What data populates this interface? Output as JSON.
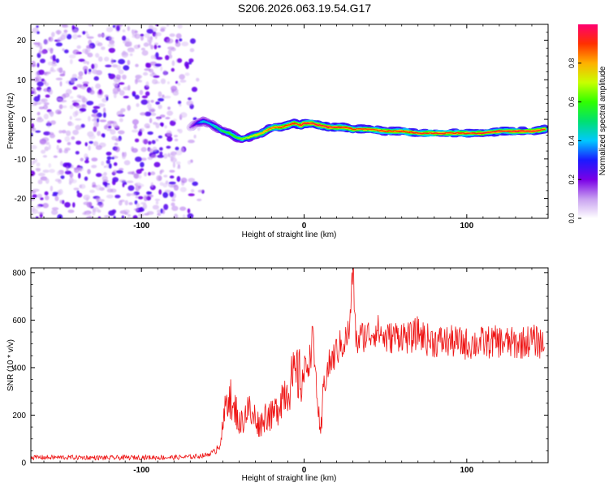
{
  "figure_title": "S206.2026.063.19.54.G17",
  "chart_data": [
    {
      "type": "heatmap",
      "title": "",
      "xlabel": "Height of straight line (km)",
      "ylabel": "Frequency (Hz)",
      "xlim": [
        -168,
        150
      ],
      "ylim": [
        -25,
        24
      ],
      "xticks": [
        -100,
        0,
        100
      ],
      "yticks": [
        -20,
        -10,
        0,
        10,
        20
      ],
      "grid": false,
      "noise_region_x": [
        -168,
        -68
      ],
      "ridge": {
        "x": [
          -70,
          -66,
          -62,
          -58,
          -54,
          -50,
          -46,
          -42,
          -38,
          -34,
          -30,
          -26,
          -22,
          -18,
          -14,
          -10,
          -6,
          -2,
          0,
          5,
          10,
          15,
          20,
          25,
          30,
          40,
          50,
          60,
          70,
          80,
          90,
          100,
          110,
          120,
          130,
          140,
          148
        ],
        "freq": [
          -2.0,
          -1.0,
          -0.5,
          -1.0,
          -2.0,
          -3.0,
          -3.5,
          -4.5,
          -5.0,
          -4.5,
          -4.0,
          -3.5,
          -2.5,
          -2.0,
          -2.0,
          -1.5,
          -1.0,
          -1.5,
          -1.0,
          -1.0,
          -1.5,
          -2.0,
          -2.0,
          -2.0,
          -2.5,
          -2.5,
          -3.0,
          -3.0,
          -3.5,
          -3.5,
          -3.5,
          -3.5,
          -3.5,
          -3.0,
          -3.0,
          -3.0,
          -2.5
        ],
        "amplitude": [
          0.15,
          0.3,
          0.45,
          0.4,
          0.5,
          0.55,
          0.6,
          0.6,
          0.65,
          0.7,
          0.75,
          0.8,
          0.85,
          0.85,
          0.9,
          0.9,
          0.9,
          0.92,
          0.95,
          0.95,
          0.95,
          0.95,
          0.93,
          0.92,
          0.9,
          0.88,
          0.9,
          0.9,
          0.92,
          0.92,
          0.9,
          0.92,
          0.93,
          0.95,
          0.95,
          0.94,
          0.93
        ]
      },
      "colorbar": {
        "label": "Normalized spectral amplitude",
        "ticks": [
          0.0,
          0.2,
          0.4,
          0.6,
          0.8
        ],
        "range": [
          0,
          1
        ],
        "colors": [
          "#ffffff",
          "#c8a0f0",
          "#7a00e6",
          "#1a1aff",
          "#00c8ff",
          "#00e070",
          "#30ff00",
          "#c8ff00",
          "#ffb000",
          "#ff3000",
          "#ff0070"
        ]
      }
    },
    {
      "type": "line",
      "title": "",
      "xlabel": "Height of straight line (km)",
      "ylabel": "SNR (10 * v/v)",
      "xlim": [
        -168,
        150
      ],
      "ylim": [
        0,
        820
      ],
      "xticks": [
        -100,
        0,
        100
      ],
      "yticks": [
        0,
        200,
        400,
        600,
        800
      ],
      "grid": false,
      "series": [
        {
          "name": "SNR",
          "color": "#ee1111",
          "x": [
            -168,
            -140,
            -120,
            -100,
            -80,
            -70,
            -60,
            -55,
            -52,
            -50,
            -48,
            -46,
            -44,
            -42,
            -40,
            -38,
            -36,
            -34,
            -32,
            -30,
            -28,
            -26,
            -24,
            -22,
            -20,
            -18,
            -16,
            -14,
            -12,
            -10,
            -8,
            -6,
            -4,
            -2,
            0,
            2,
            4,
            5,
            6,
            8,
            10,
            12,
            14,
            16,
            18,
            20,
            22,
            25,
            28,
            30,
            32,
            35,
            40,
            45,
            50,
            55,
            60,
            65,
            70,
            75,
            80,
            90,
            100,
            110,
            120,
            130,
            140,
            148
          ],
          "y": [
            22,
            22,
            20,
            22,
            22,
            24,
            32,
            48,
            80,
            140,
            250,
            310,
            200,
            230,
            160,
            175,
            210,
            230,
            180,
            200,
            160,
            170,
            200,
            210,
            190,
            210,
            240,
            280,
            300,
            320,
            340,
            350,
            370,
            350,
            380,
            420,
            440,
            580,
            450,
            300,
            60,
            330,
            380,
            420,
            440,
            470,
            490,
            510,
            560,
            830,
            500,
            530,
            540,
            560,
            520,
            530,
            540,
            520,
            550,
            520,
            510,
            510,
            500,
            505,
            510,
            500,
            515,
            500
          ]
        }
      ]
    }
  ]
}
